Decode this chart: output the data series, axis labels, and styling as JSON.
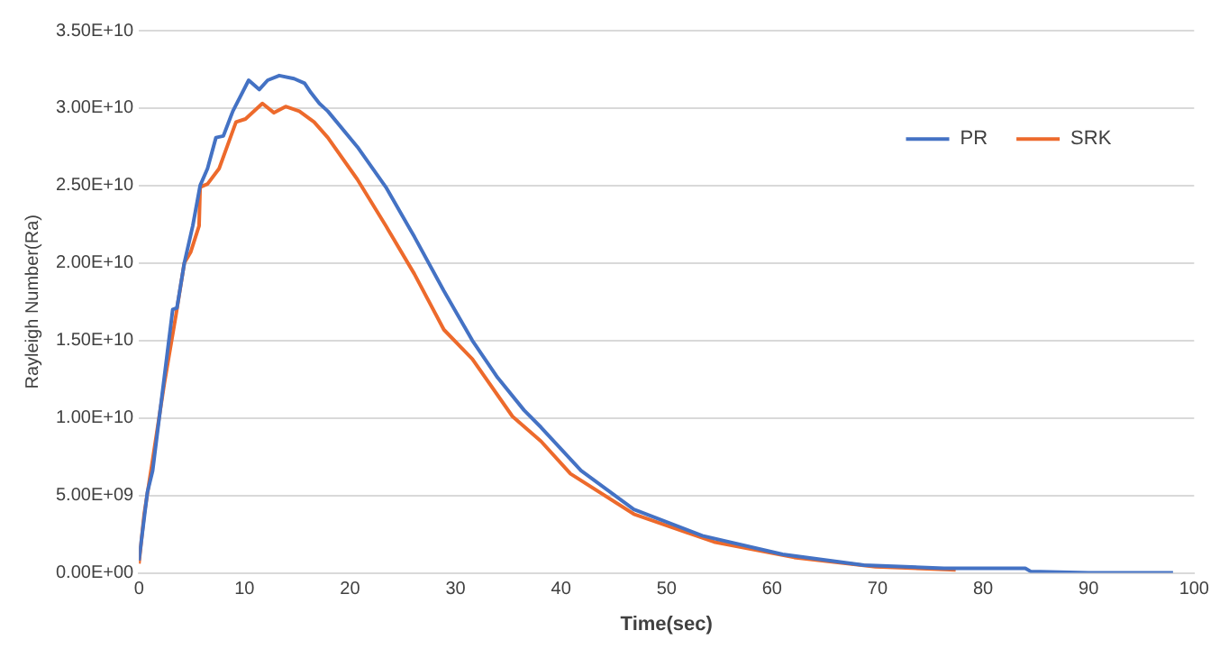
{
  "chart_data": {
    "type": "line",
    "xlabel": "Time(sec)",
    "ylabel": "Rayleigh Number(Ra)",
    "xlim": [
      0,
      100
    ],
    "xticks": [
      0,
      10,
      20,
      30,
      40,
      50,
      60,
      70,
      80,
      90,
      100
    ],
    "ylim": [
      0,
      35000000000.0
    ],
    "yticks": [
      {
        "value": 0,
        "label": "0.00E+00"
      },
      {
        "value": 5000000000.0,
        "label": "5.00E+09"
      },
      {
        "value": 10000000000.0,
        "label": "1.00E+10"
      },
      {
        "value": 15000000000.0,
        "label": "1.50E+10"
      },
      {
        "value": 20000000000.0,
        "label": "2.00E+10"
      },
      {
        "value": 25000000000.0,
        "label": "2.50E+10"
      },
      {
        "value": 30000000000.0,
        "label": "3.00E+10"
      },
      {
        "value": 35000000000.0,
        "label": "3.50E+10"
      }
    ],
    "grid": "y",
    "legend": "top right",
    "marker": "none",
    "line_style": "solid",
    "series": [
      {
        "name": "PR",
        "color": "#4472c4",
        "x": [
          0,
          0.8,
          1.3,
          2.4,
          3.2,
          3.6,
          4.3,
          5.1,
          5.8,
          6.5,
          7.3,
          8.0,
          8.9,
          10.4,
          11.4,
          12.2,
          13.3,
          14.7,
          15.7,
          16.3,
          17.1,
          17.9,
          20.7,
          23.4,
          26.1,
          28.9,
          31.6,
          34.0,
          36.5,
          38.1,
          41.9,
          46.9,
          53.4,
          61.0,
          68.7,
          76.3,
          84.0,
          84.5,
          90,
          98
        ],
        "values": [
          800000000.0,
          5200000000.0,
          6600000000.0,
          12600000000.0,
          17000000000.0,
          17100000000.0,
          20000000000.0,
          22400000000.0,
          25000000000.0,
          26100000000.0,
          28100000000.0,
          28200000000.0,
          29800000000.0,
          31800000000.0,
          31200000000.0,
          31800000000.0,
          32100000000.0,
          31900000000.0,
          31600000000.0,
          31000000000.0,
          30300000000.0,
          29800000000.0,
          27500000000.0,
          24900000000.0,
          21700000000.0,
          18200000000.0,
          15000000000.0,
          12600000000.0,
          10500000000.0,
          9400000000.0,
          6600000000.0,
          4100000000.0,
          2400000000.0,
          1200000000.0,
          500000000.0,
          300000000.0,
          300000000.0,
          100000000.0,
          0,
          0
        ]
      },
      {
        "name": "SRK",
        "color": "#ed6a2c",
        "x": [
          0,
          0.5,
          1.3,
          2.4,
          3.5,
          4.3,
          4.9,
          5.7,
          5.8,
          6.5,
          7.6,
          9.2,
          10.1,
          11.7,
          12.8,
          13.9,
          15.2,
          16.6,
          17.9,
          20.7,
          23.4,
          26.1,
          28.9,
          31.6,
          35.4,
          38.1,
          40.9,
          46.9,
          54.5,
          62.1,
          69.8,
          77.4
        ],
        "values": [
          600000000.0,
          3800000000.0,
          7300000000.0,
          12200000000.0,
          16600000000.0,
          20000000000.0,
          20700000000.0,
          22400000000.0,
          24900000000.0,
          25100000000.0,
          26100000000.0,
          29100000000.0,
          29300000000.0,
          30300000000.0,
          29700000000.0,
          30100000000.0,
          29800000000.0,
          29100000000.0,
          28100000000.0,
          25400000000.0,
          22400000000.0,
          19300000000.0,
          15700000000.0,
          13800000000.0,
          10100000000.0,
          8500000000.0,
          6400000000.0,
          3800000000.0,
          2000000000.0,
          1000000000.0,
          400000000.0,
          200000000.0
        ]
      }
    ]
  }
}
